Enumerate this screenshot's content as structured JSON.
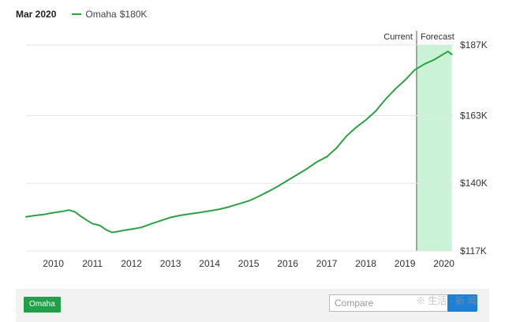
{
  "header": {
    "date": "Mar 2020",
    "legend_name": "Omaha",
    "legend_value": "$180K"
  },
  "colors": {
    "series": "#2ea043",
    "forecast_fill": "#c9f2d6",
    "grid": "#e6e6e6",
    "chip": "#21a04a",
    "button": "#1e7fd6"
  },
  "chart_data": {
    "type": "line",
    "title": "",
    "xlabel": "",
    "ylabel": "",
    "xlim": [
      2009.3,
      2020.25
    ],
    "ylim": [
      117,
      187
    ],
    "x_ticks": [
      2010,
      2011,
      2012,
      2013,
      2014,
      2015,
      2016,
      2017,
      2018,
      2019,
      2020
    ],
    "x_tick_labels": [
      "2010",
      "2011",
      "2012",
      "2013",
      "2014",
      "2015",
      "2016",
      "2017",
      "2018",
      "2019",
      "2020"
    ],
    "y_ticks": [
      117,
      140,
      163,
      187
    ],
    "y_tick_labels": [
      "$117K",
      "$140K",
      "$163K",
      "$187K"
    ],
    "grid": true,
    "regions": [
      {
        "label": "Current",
        "marker_x": 2019.3
      },
      {
        "label": "Forecast",
        "from": 2019.3,
        "to": 2020.2
      }
    ],
    "series": [
      {
        "name": "Omaha",
        "x": [
          2009.3,
          2009.5,
          2009.75,
          2010.0,
          2010.25,
          2010.4,
          2010.55,
          2010.7,
          2010.85,
          2011.0,
          2011.2,
          2011.35,
          2011.5,
          2011.65,
          2011.8,
          2012.0,
          2012.25,
          2012.5,
          2012.75,
          2013.0,
          2013.25,
          2013.5,
          2013.75,
          2014.0,
          2014.25,
          2014.5,
          2014.75,
          2015.0,
          2015.25,
          2015.5,
          2015.75,
          2016.0,
          2016.25,
          2016.5,
          2016.75,
          2017.0,
          2017.25,
          2017.5,
          2017.75,
          2018.0,
          2018.25,
          2018.5,
          2018.75,
          2019.0,
          2019.25,
          2019.5,
          2019.75,
          2020.0,
          2020.1,
          2020.2
        ],
        "y": [
          128.6,
          129.0,
          129.4,
          130.0,
          130.5,
          130.9,
          130.3,
          128.8,
          127.5,
          126.3,
          125.6,
          124.2,
          123.3,
          123.6,
          124.0,
          124.4,
          125.0,
          126.2,
          127.3,
          128.4,
          129.1,
          129.6,
          130.1,
          130.6,
          131.2,
          132.0,
          133.0,
          134.0,
          135.5,
          137.2,
          139.0,
          141.0,
          143.0,
          145.0,
          147.3,
          149.0,
          152.0,
          156.0,
          159.0,
          161.5,
          164.5,
          168.5,
          172.0,
          175.0,
          178.5,
          180.5,
          182.0,
          184.0,
          184.8,
          183.8
        ]
      }
    ]
  },
  "footer": {
    "chip_label": "Omaha",
    "compare_placeholder": "Compare"
  }
}
